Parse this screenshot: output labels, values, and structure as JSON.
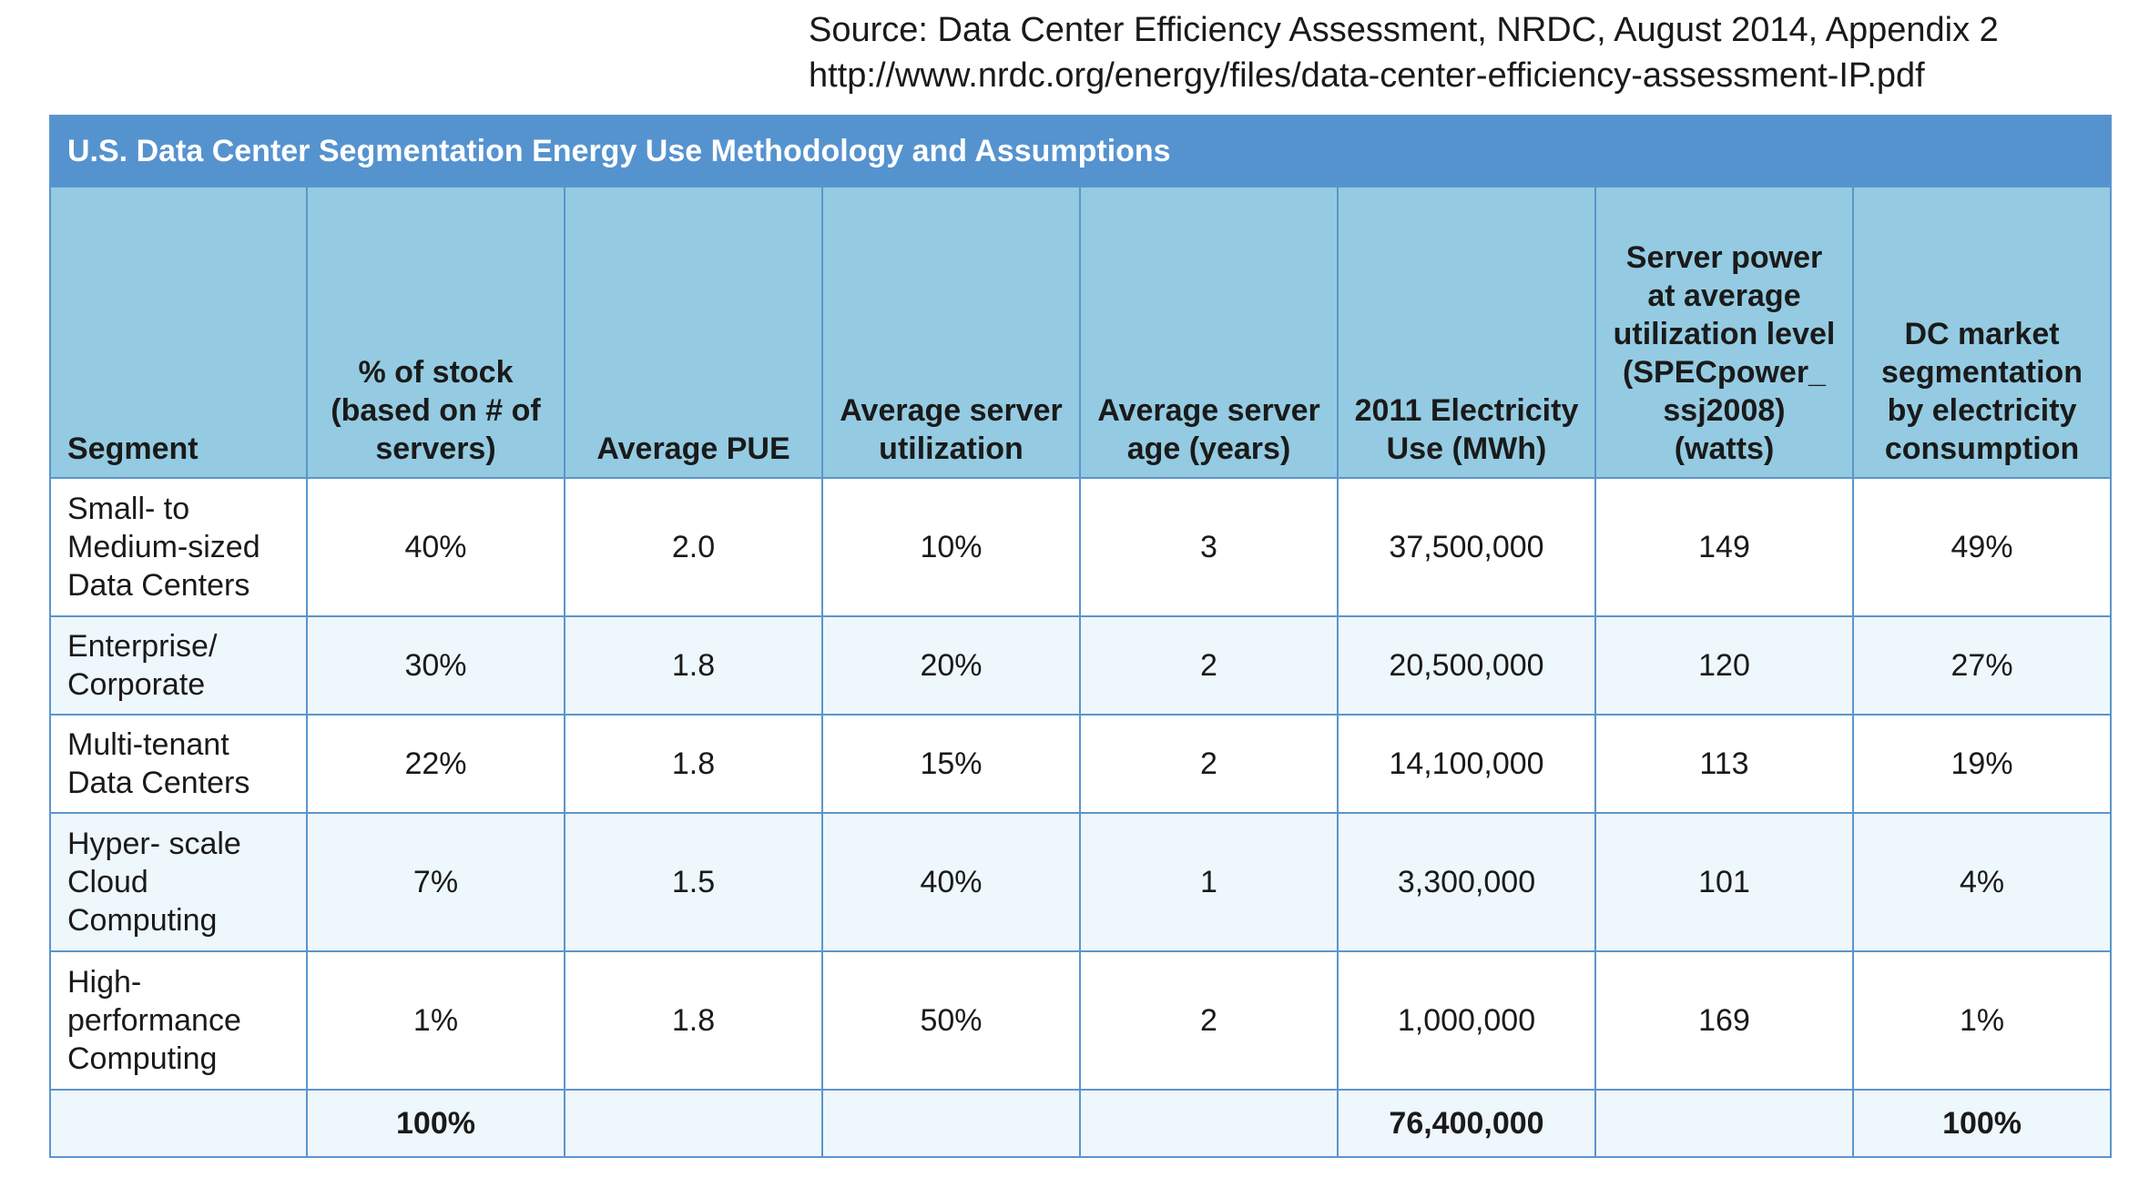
{
  "source": {
    "line1": "Source: Data Center Efficiency Assessment, NRDC, August 2014, Appendix 2",
    "line2": "http://www.nrdc.org/energy/files/data-center-efficiency-assessment-IP.pdf"
  },
  "table": {
    "title": "U.S. Data Center Segmentation Energy Use Methodology and Assumptions",
    "headers": [
      "Segment",
      "% of stock (based on # of servers)",
      "Average PUE",
      "Average server utilization",
      "Average server age (years)",
      "2011 Electricity Use (MWh)",
      "Server power at average utilization level (SPECpower_ ssj2008) (watts)",
      "DC market segmentation by electricity consumption"
    ],
    "rows": [
      [
        "Small- to Medium-sized Data Centers",
        "40%",
        "2.0",
        "10%",
        "3",
        "37,500,000",
        "149",
        "49%"
      ],
      [
        "Enterprise/ Corporate",
        "30%",
        "1.8",
        "20%",
        "2",
        "20,500,000",
        "120",
        "27%"
      ],
      [
        "Multi-tenant Data Centers",
        "22%",
        "1.8",
        "15%",
        "2",
        "14,100,000",
        "113",
        "19%"
      ],
      [
        "Hyper- scale Cloud Computing",
        "7%",
        "1.5",
        "40%",
        "1",
        "3,300,000",
        "101",
        "4%"
      ],
      [
        "High- performance Computing",
        "1%",
        "1.8",
        "50%",
        "2",
        "1,000,000",
        "169",
        "1%"
      ]
    ],
    "totals": [
      "",
      "100%",
      "",
      "",
      "",
      "76,400,000",
      "",
      "100%"
    ]
  }
}
